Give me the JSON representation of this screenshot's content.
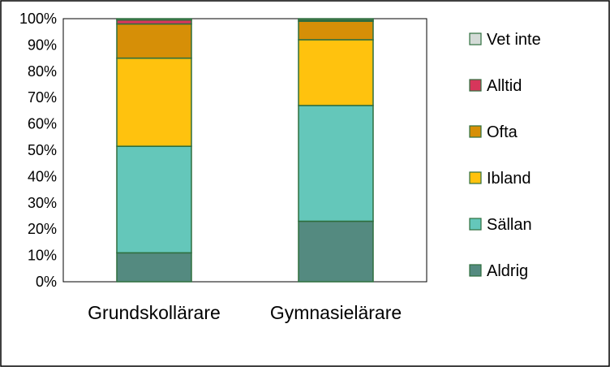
{
  "chart_data": {
    "type": "bar",
    "stacked": true,
    "categories": [
      "Grundskollärare",
      "Gymnasielärare"
    ],
    "series": [
      {
        "name": "Aldrig",
        "color": "#548A80",
        "values": [
          11,
          23
        ]
      },
      {
        "name": "Sällan",
        "color": "#64C7BA",
        "values": [
          40.5,
          44
        ]
      },
      {
        "name": "Ibland",
        "color": "#FFC20E",
        "values": [
          33.5,
          25
        ]
      },
      {
        "name": "Ofta",
        "color": "#D68F07",
        "values": [
          13,
          7
        ]
      },
      {
        "name": "Alltid",
        "color": "#D7365B",
        "values": [
          1.5,
          0.5
        ]
      },
      {
        "name": "Vet inte",
        "color": "#D4DBD7",
        "values": [
          0.5,
          0.5
        ]
      }
    ],
    "ylim": [
      0,
      100
    ],
    "yticks": [
      "0%",
      "10%",
      "20%",
      "30%",
      "40%",
      "50%",
      "60%",
      "70%",
      "80%",
      "90%",
      "100%"
    ],
    "legend_position": "right",
    "legend_order": [
      "Vet inte",
      "Alltid",
      "Ofta",
      "Ibland",
      "Sällan",
      "Aldrig"
    ],
    "grid": false,
    "bar_edge_color": "#2E6E3E"
  }
}
